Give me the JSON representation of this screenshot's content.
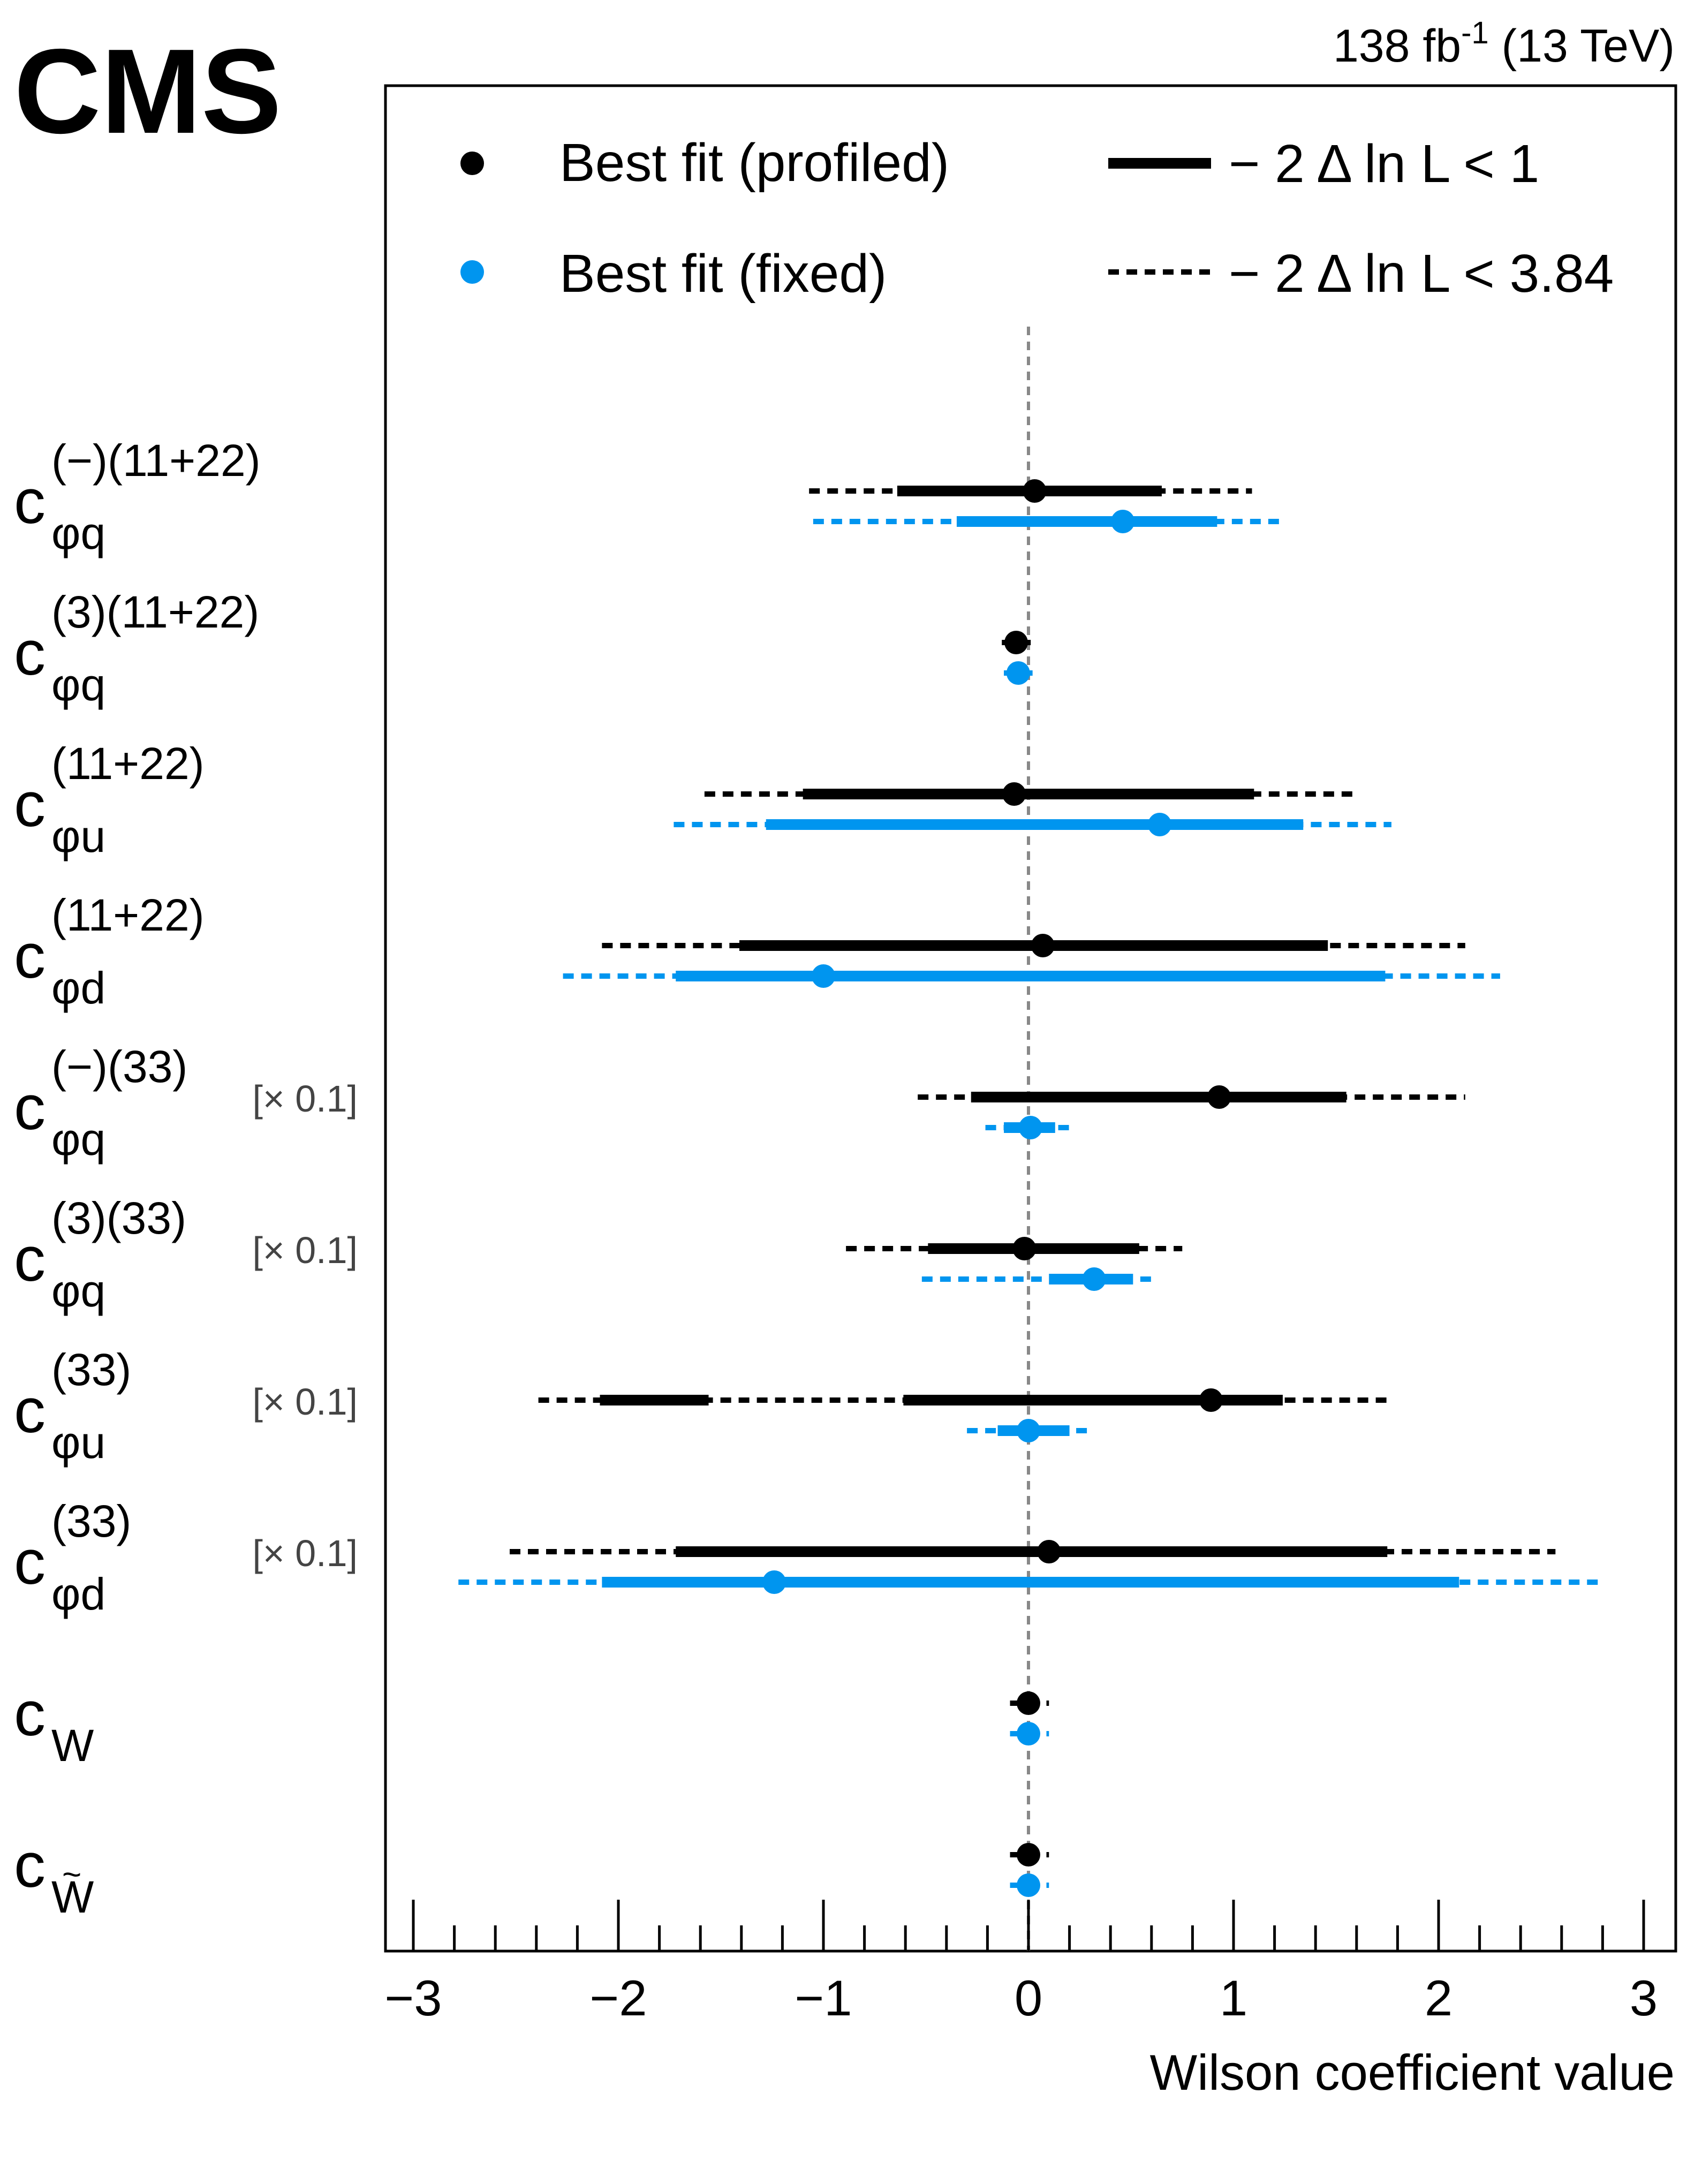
{
  "header": {
    "experiment": "CMS",
    "lumi_value": "138 fb",
    "lumi_exp": "-1",
    "energy": " (13 TeV)"
  },
  "colors": {
    "profiled": "#000000",
    "fixed": "#0095ef",
    "zero_line": "#888888"
  },
  "chart_data": {
    "type": "interval",
    "xlabel": "Wilson coefficient value",
    "xlim": [
      -3.3,
      3.15
    ],
    "xticks": [
      {
        "v": -3,
        "label": "−3"
      },
      {
        "v": -2,
        "label": "−2"
      },
      {
        "v": -1,
        "label": "−1"
      },
      {
        "v": 0,
        "label": "0"
      },
      {
        "v": 1,
        "label": "1"
      },
      {
        "v": 2,
        "label": "2"
      },
      {
        "v": 3,
        "label": "3"
      }
    ],
    "legend": {
      "position": "top",
      "profiled": "Best fit (profiled)",
      "fixed": "Best fit (fixed)",
      "cl68": "− 2 Δ ln L < 1",
      "cl95": "− 2 Δ ln L < 3.84"
    },
    "scale_note": "[× 0.1]",
    "parameters": [
      {
        "id": "cphiq-minus-1122",
        "base": "c",
        "sub": "φq",
        "sup": "(−)(11+22)",
        "scaled": false,
        "profiled": {
          "best": 0.03,
          "cl68": [
            [
              -0.64,
              0.65
            ]
          ],
          "cl95": [
            [
              -1.07,
              1.09
            ]
          ]
        },
        "fixed": {
          "best": 0.46,
          "cl68": [
            [
              -0.35,
              0.92
            ]
          ],
          "cl95": [
            [
              -1.05,
              1.25
            ]
          ]
        }
      },
      {
        "id": "cphiq-3-1122",
        "base": "c",
        "sub": "φq",
        "sup": "(3)(11+22)",
        "scaled": false,
        "profiled": {
          "best": -0.06,
          "cl68": [
            [
              -0.09,
              -0.03
            ]
          ],
          "cl95": [
            [
              -0.13,
              0.02
            ]
          ]
        },
        "fixed": {
          "best": -0.05,
          "cl68": [
            [
              -0.08,
              -0.02
            ]
          ],
          "cl95": [
            [
              -0.12,
              0.02
            ]
          ]
        }
      },
      {
        "id": "cphiu-1122",
        "base": "c",
        "sub": "φu",
        "sup": "(11+22)",
        "scaled": false,
        "profiled": {
          "best": -0.07,
          "cl68": [
            [
              -1.1,
              1.1
            ]
          ],
          "cl95": [
            [
              -1.58,
              1.6
            ]
          ]
        },
        "fixed": {
          "best": 0.64,
          "cl68": [
            [
              -1.28,
              1.34
            ]
          ],
          "cl95": [
            [
              -1.73,
              1.77
            ]
          ]
        }
      },
      {
        "id": "cphid-1122",
        "base": "c",
        "sub": "φd",
        "sup": "(11+22)",
        "scaled": false,
        "profiled": {
          "best": 0.07,
          "cl68": [
            [
              -1.41,
              1.46
            ]
          ],
          "cl95": [
            [
              -2.08,
              2.13
            ]
          ]
        },
        "fixed": {
          "best": -1.0,
          "cl68": [
            [
              -1.72,
              1.74
            ]
          ],
          "cl95": [
            [
              -2.27,
              2.3
            ]
          ]
        }
      },
      {
        "id": "cphiq-minus-33",
        "base": "c",
        "sub": "φq",
        "sup": "(−)(33)",
        "scaled": true,
        "profiled": {
          "best": 0.93,
          "cl68": [
            [
              -0.28,
              1.55
            ]
          ],
          "cl95": [
            [
              -0.54,
              2.13
            ]
          ]
        },
        "fixed": {
          "best": 0.01,
          "cl68": [
            [
              -0.12,
              0.13
            ]
          ],
          "cl95": [
            [
              -0.21,
              0.22
            ]
          ]
        }
      },
      {
        "id": "cphiq-3-33",
        "base": "c",
        "sub": "φq",
        "sup": "(3)(33)",
        "scaled": true,
        "profiled": {
          "best": -0.02,
          "cl68": [
            [
              -0.49,
              0.54
            ]
          ],
          "cl95": [
            [
              -0.89,
              0.75
            ]
          ]
        },
        "fixed": {
          "best": 0.32,
          "cl68": [
            [
              0.1,
              0.51
            ]
          ],
          "cl95": [
            [
              -0.52,
              0.6
            ]
          ]
        }
      },
      {
        "id": "cphiu-33",
        "base": "c",
        "sub": "φu",
        "sup": "(33)",
        "scaled": true,
        "profiled": {
          "best": 0.89,
          "cl68": [
            [
              -2.09,
              -1.56
            ],
            [
              -0.61,
              1.24
            ]
          ],
          "cl95": [
            [
              -2.39,
              1.77
            ]
          ]
        },
        "fixed": {
          "best": 0.0,
          "cl68": [
            [
              -0.15,
              0.2
            ]
          ],
          "cl95": [
            [
              -0.3,
              0.32
            ]
          ]
        }
      },
      {
        "id": "cphid-33",
        "base": "c",
        "sub": "φd",
        "sup": "(33)",
        "scaled": true,
        "profiled": {
          "best": 0.1,
          "cl68": [
            [
              -1.72,
              1.75
            ]
          ],
          "cl95": [
            [
              -2.53,
              2.57
            ]
          ]
        },
        "fixed": {
          "best": -1.24,
          "cl68": [
            [
              -2.08,
              2.1
            ]
          ],
          "cl95": [
            [
              -2.78,
              2.8
            ]
          ]
        }
      },
      {
        "id": "cw",
        "base": "c",
        "sub": "W",
        "sup": "",
        "scaled": false,
        "profiled": {
          "best": 0.0,
          "cl68": [
            [
              -0.05,
              0.05
            ]
          ],
          "cl95": [
            [
              -0.09,
              0.1
            ]
          ]
        },
        "fixed": {
          "best": 0.0,
          "cl68": [
            [
              -0.04,
              0.04
            ]
          ],
          "cl95": [
            [
              -0.09,
              0.1
            ]
          ]
        }
      },
      {
        "id": "cwtilde",
        "base": "c",
        "sub": "W",
        "sub_accent": "~",
        "sup": "",
        "scaled": false,
        "profiled": {
          "best": 0.0,
          "cl68": [
            [
              -0.05,
              0.05
            ]
          ],
          "cl95": [
            [
              -0.09,
              0.1
            ]
          ]
        },
        "fixed": {
          "best": 0.0,
          "cl68": [
            [
              -0.04,
              0.04
            ]
          ],
          "cl95": [
            [
              -0.09,
              0.1
            ]
          ]
        }
      }
    ]
  }
}
